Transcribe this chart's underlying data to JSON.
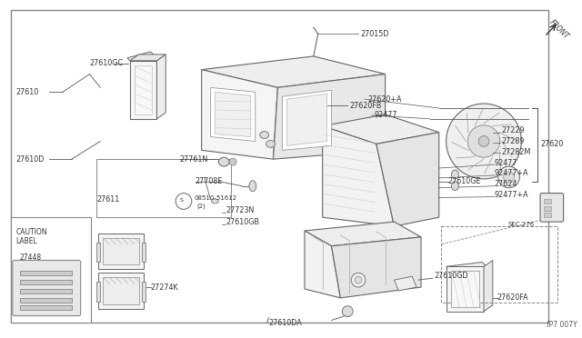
{
  "bg_color": "#ffffff",
  "border_color": "#888888",
  "line_color": "#555555",
  "text_color": "#333333",
  "fig_width": 6.4,
  "fig_height": 3.72,
  "dpi": 100,
  "footer": ".IP7 007Y",
  "front_label": "FRONT",
  "sec_label": "SEC.276",
  "caution_label_line1": "CAUTION",
  "caution_label_line2": "LABEL"
}
